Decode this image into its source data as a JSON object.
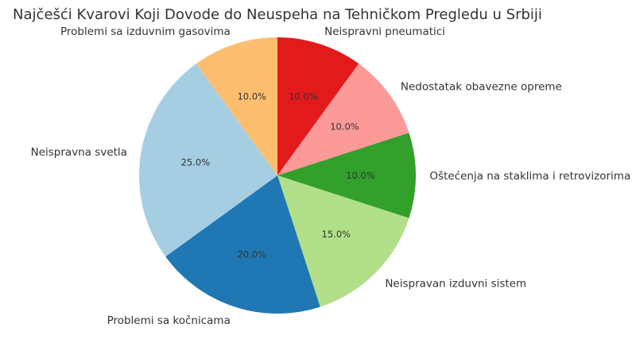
{
  "chart_data": {
    "type": "pie",
    "title": "Najčešći Kvarovi Koji Dovode do Neuspeha na Tehničkom Pregledu u Srbiji",
    "start_angle_deg": 90,
    "direction": "clockwise",
    "slices": [
      {
        "label": "Neispravni pneumatici",
        "value": 10.0,
        "pct_label": "10.0%",
        "color": "#e31a1c"
      },
      {
        "label": "Nedostatak obavezne opreme",
        "value": 10.0,
        "pct_label": "10.0%",
        "color": "#fb9a99"
      },
      {
        "label": "Oštećenja na staklima i retrovizorima",
        "value": 10.0,
        "pct_label": "10.0%",
        "color": "#33a02c"
      },
      {
        "label": "Neispravan izduvni sistem",
        "value": 15.0,
        "pct_label": "15.0%",
        "color": "#b2df8a"
      },
      {
        "label": "Problemi sa kočnicama",
        "value": 20.0,
        "pct_label": "20.0%",
        "color": "#1f78b4"
      },
      {
        "label": "Neispravna svetla",
        "value": 25.0,
        "pct_label": "25.0%",
        "color": "#a6cee3"
      },
      {
        "label": "Problemi sa izduvnim gasovima",
        "value": 10.0,
        "pct_label": "10.0%",
        "color": "#fdbf6f"
      }
    ]
  }
}
